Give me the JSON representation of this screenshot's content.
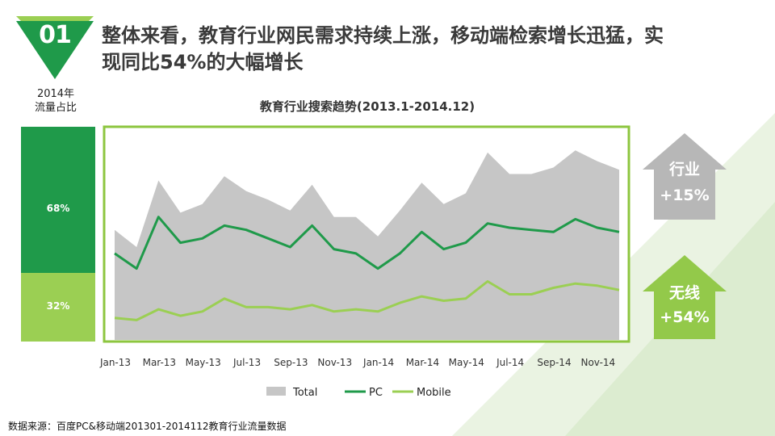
{
  "header": {
    "badge_number": "01",
    "headline_line1": "整体来看，教育行业网民需求持续上涨，移动端检索增长迅猛，实",
    "headline_line2": "现同比54%的大幅增长"
  },
  "share_panel": {
    "label_line1": "2014年",
    "label_line2": "流量占比",
    "segments": [
      {
        "name": "PC",
        "value": 68,
        "label": "68%",
        "color": "#1f9a4a"
      },
      {
        "name": "Mobile",
        "value": 32,
        "label": "32%",
        "color": "#9bcf53"
      }
    ]
  },
  "arrows": {
    "industry": {
      "label": "行业",
      "value": "+15%",
      "color": "#b7b7b7"
    },
    "wireless": {
      "label": "无线",
      "value": "+54%",
      "color": "#93c94a"
    }
  },
  "source": "数据来源：百度PC&移动端201301-2014112教育行业流量数据",
  "colors": {
    "total": "#c6c6c6",
    "pc": "#1f9a4a",
    "mobile": "#9bcf53",
    "frame": "#8dc63f"
  },
  "chart_data": {
    "type": "area",
    "title": "教育行业搜索趋势(2013.1-2014.12)",
    "xlabel": "",
    "ylabel": "",
    "ylim": [
      0,
      100
    ],
    "categories": [
      "Jan-13",
      "Feb-13",
      "Mar-13",
      "Apr-13",
      "May-13",
      "Jun-13",
      "Jul-13",
      "Aug-13",
      "Sep-13",
      "Oct-13",
      "Nov-13",
      "Dec-13",
      "Jan-14",
      "Feb-14",
      "Mar-14",
      "Apr-14",
      "May-14",
      "Jun-14",
      "Jul-14",
      "Aug-14",
      "Sep-14",
      "Oct-14",
      "Nov-14",
      "Dec-14"
    ],
    "tick_labels": [
      "Jan-13",
      "Mar-13",
      "May-13",
      "Jul-13",
      "Sep-13",
      "Nov-13",
      "Jan-14",
      "Mar-14",
      "May-14",
      "Jul-14",
      "Sep-14",
      "Nov-14"
    ],
    "series": [
      {
        "name": "Total",
        "kind": "area",
        "values": [
          52,
          44,
          75,
          60,
          64,
          77,
          70,
          66,
          61,
          73,
          58,
          58,
          49,
          61,
          74,
          64,
          69,
          88,
          78,
          78,
          81,
          89,
          84,
          80
        ]
      },
      {
        "name": "PC",
        "kind": "line",
        "values": [
          41,
          34,
          58,
          46,
          48,
          54,
          52,
          48,
          44,
          54,
          43,
          41,
          34,
          41,
          51,
          43,
          46,
          55,
          53,
          52,
          51,
          57,
          53,
          51
        ]
      },
      {
        "name": "Mobile",
        "kind": "line",
        "values": [
          11,
          10,
          15,
          12,
          14,
          20,
          16,
          16,
          15,
          17,
          14,
          15,
          14,
          18,
          21,
          19,
          20,
          28,
          22,
          22,
          25,
          27,
          26,
          24
        ]
      }
    ],
    "legend": {
      "position": "bottom",
      "entries": [
        "Total",
        "PC",
        "Mobile"
      ]
    }
  }
}
